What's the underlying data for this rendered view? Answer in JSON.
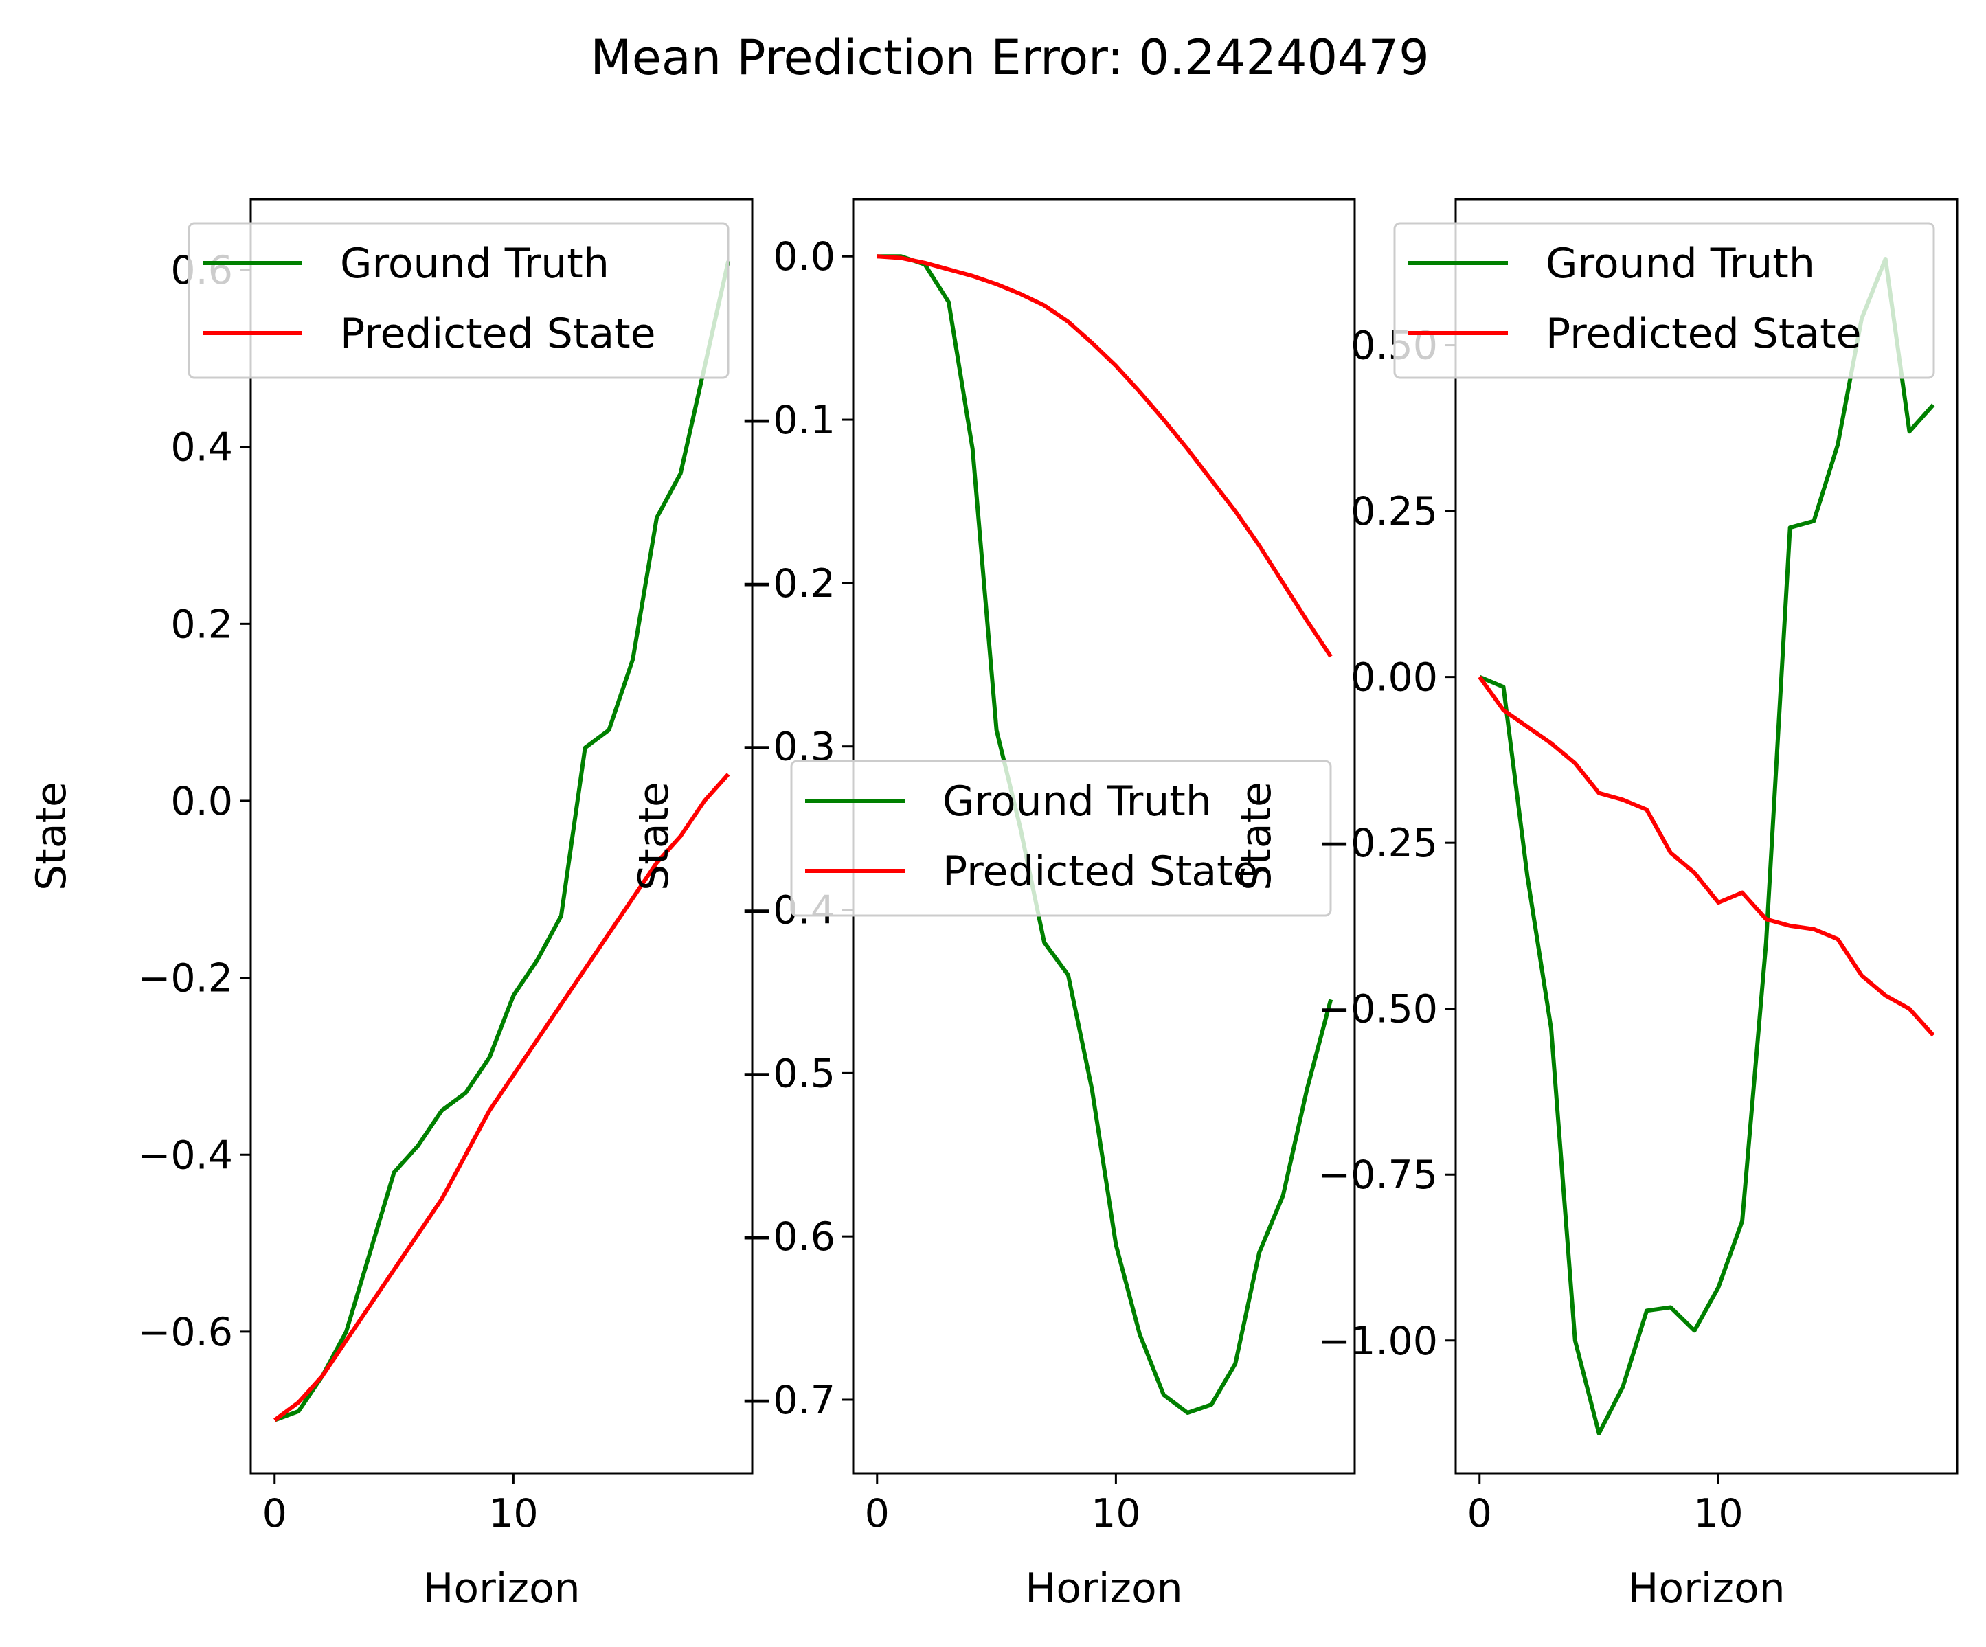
{
  "suptitle": "Mean Prediction Error: 0.24240479",
  "colors": {
    "ground_truth": "#008000",
    "predicted": "#ff0000",
    "axes": "#000000",
    "legend_border": "#cccccc"
  },
  "chart_data": [
    {
      "type": "line",
      "xlabel": "Horizon",
      "ylabel": "State",
      "xlim": [
        -1,
        20
      ],
      "ylim": [
        -0.76,
        0.68
      ],
      "xticks": [
        0,
        10
      ],
      "xtick_labels": [
        "0",
        "10"
      ],
      "yticks": [
        -0.6,
        -0.4,
        -0.2,
        0.0,
        0.2,
        0.4,
        0.6
      ],
      "ytick_labels": [
        "−0.6",
        "−0.4",
        "−0.2",
        "0.0",
        "0.2",
        "0.4",
        "0.6"
      ],
      "legend_position": "upper-left",
      "legend_labels": [
        "Ground Truth",
        "Predicted State"
      ],
      "x": [
        0,
        1,
        2,
        3,
        4,
        5,
        6,
        7,
        8,
        9,
        10,
        11,
        12,
        13,
        14,
        15,
        16,
        17,
        18,
        19
      ],
      "series": [
        {
          "name": "Ground Truth",
          "color": "#008000",
          "values": [
            -0.7,
            -0.69,
            -0.65,
            -0.6,
            -0.51,
            -0.42,
            -0.39,
            -0.35,
            -0.33,
            -0.29,
            -0.22,
            -0.18,
            -0.13,
            0.06,
            0.08,
            0.16,
            0.32,
            0.37,
            0.49,
            0.61
          ]
        },
        {
          "name": "Predicted State",
          "color": "#ff0000",
          "values": [
            -0.7,
            -0.68,
            -0.65,
            -0.61,
            -0.57,
            -0.53,
            -0.49,
            -0.45,
            -0.4,
            -0.35,
            -0.31,
            -0.27,
            -0.23,
            -0.19,
            -0.15,
            -0.11,
            -0.07,
            -0.04,
            0.0,
            0.03
          ]
        }
      ]
    },
    {
      "type": "line",
      "xlabel": "Horizon",
      "ylabel": "State",
      "xlim": [
        -1,
        20
      ],
      "ylim": [
        -0.745,
        0.035
      ],
      "xticks": [
        0,
        10
      ],
      "xtick_labels": [
        "0",
        "10"
      ],
      "yticks": [
        0.0,
        -0.1,
        -0.2,
        -0.3,
        -0.4,
        -0.5,
        -0.6,
        -0.7
      ],
      "ytick_labels": [
        "0.0",
        "−0.1",
        "−0.2",
        "−0.3",
        "−0.4",
        "−0.5",
        "−0.6",
        "−0.7"
      ],
      "legend_position": "center-left",
      "legend_labels": [
        "Ground Truth",
        "Predicted State"
      ],
      "x": [
        0,
        1,
        2,
        3,
        4,
        5,
        6,
        7,
        8,
        9,
        10,
        11,
        12,
        13,
        14,
        15,
        16,
        17,
        18,
        19
      ],
      "series": [
        {
          "name": "Ground Truth",
          "color": "#008000",
          "values": [
            0.0,
            0.0,
            -0.005,
            -0.028,
            -0.118,
            -0.29,
            -0.35,
            -0.42,
            -0.44,
            -0.51,
            -0.605,
            -0.66,
            -0.697,
            -0.708,
            -0.703,
            -0.678,
            -0.61,
            -0.575,
            -0.51,
            -0.455
          ]
        },
        {
          "name": "Predicted State",
          "color": "#ff0000",
          "values": [
            0.0,
            -0.001,
            -0.004,
            -0.008,
            -0.012,
            -0.017,
            -0.023,
            -0.03,
            -0.04,
            -0.053,
            -0.067,
            -0.083,
            -0.1,
            -0.118,
            -0.137,
            -0.156,
            -0.177,
            -0.2,
            -0.223,
            -0.245
          ]
        }
      ]
    },
    {
      "type": "line",
      "xlabel": "Horizon",
      "ylabel": "State",
      "xlim": [
        -1,
        20
      ],
      "ylim": [
        -1.2,
        0.72
      ],
      "xticks": [
        0,
        10
      ],
      "xtick_labels": [
        "0",
        "10"
      ],
      "yticks": [
        0.5,
        0.25,
        0.0,
        -0.25,
        -0.5,
        -0.75,
        -1.0
      ],
      "ytick_labels": [
        "0.50",
        "0.25",
        "0.00",
        "−0.25",
        "−0.50",
        "−0.75",
        "−1.00"
      ],
      "legend_position": "upper-left",
      "legend_labels": [
        "Ground Truth",
        "Predicted State"
      ],
      "x": [
        0,
        1,
        2,
        3,
        4,
        5,
        6,
        7,
        8,
        9,
        10,
        11,
        12,
        13,
        14,
        15,
        16,
        17,
        18,
        19
      ],
      "series": [
        {
          "name": "Ground Truth",
          "color": "#008000",
          "values": [
            0.0,
            -0.015,
            -0.3,
            -0.53,
            -1.0,
            -1.14,
            -1.07,
            -0.955,
            -0.95,
            -0.985,
            -0.92,
            -0.82,
            -0.4,
            0.225,
            0.235,
            0.35,
            0.54,
            0.63,
            0.37,
            0.41
          ]
        },
        {
          "name": "Predicted State",
          "color": "#ff0000",
          "values": [
            0.0,
            -0.05,
            -0.075,
            -0.1,
            -0.13,
            -0.175,
            -0.185,
            -0.2,
            -0.265,
            -0.295,
            -0.34,
            -0.325,
            -0.365,
            -0.375,
            -0.38,
            -0.395,
            -0.45,
            -0.48,
            -0.5,
            -0.54
          ]
        }
      ]
    }
  ]
}
